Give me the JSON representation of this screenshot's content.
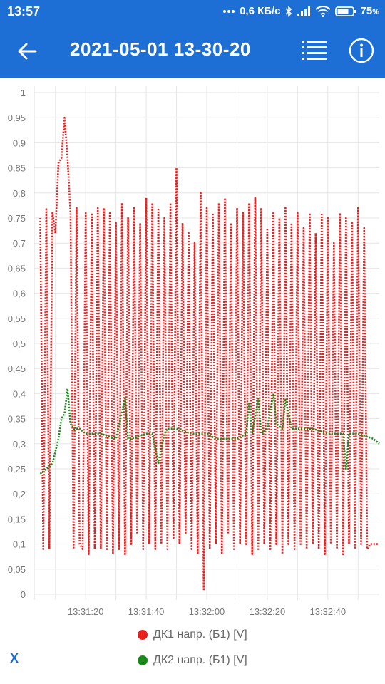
{
  "status_bar": {
    "time": "13:57",
    "network_speed": "0,6 КБ/с",
    "battery": "75",
    "battery_unit": "%",
    "icons": [
      "more-dots-icon",
      "bluetooth-icon",
      "signal-icon",
      "wifi-icon",
      "battery-icon"
    ]
  },
  "app_bar": {
    "title": "2021-05-01 13-30-20",
    "icons": [
      "back-arrow-icon",
      "list-icon",
      "info-icon"
    ]
  },
  "colors": {
    "accent": "#1d6fd6",
    "series_1": "#e82020",
    "series_2": "#1a8a1a",
    "grid": "#e6e6e6"
  },
  "chart_data": {
    "type": "line",
    "title": "",
    "xlabel": "",
    "ylabel": "",
    "ylim": [
      0,
      1
    ],
    "xlim": [
      "13:31:03",
      "13:32:57"
    ],
    "y_ticks": [
      "0",
      "0,05",
      "0,1",
      "0,15",
      "0,2",
      "0,25",
      "0,3",
      "0,35",
      "0,4",
      "0,45",
      "0,5",
      "0,55",
      "0,6",
      "0,65",
      "0,7",
      "0,75",
      "0,8",
      "0,85",
      "0,9",
      "0,95",
      "1"
    ],
    "x_ticks": [
      "13:31:20",
      "13:31:40",
      "13:32:00",
      "13:32:20",
      "13:32:40"
    ],
    "grid": true,
    "legend_position": "bottom",
    "series": [
      {
        "name": "ДК1 напр. (Б1) [V]",
        "line_style": "dotted",
        "x": [
          "13:31:05",
          "13:31:06",
          "13:31:07",
          "13:31:08",
          "13:31:09",
          "13:31:10",
          "13:31:11",
          "13:31:12",
          "13:31:13",
          "13:31:14",
          "13:31:15",
          "13:31:16",
          "13:31:17",
          "13:31:18",
          "13:31:19",
          "13:31:20",
          "13:31:21",
          "13:31:22",
          "13:31:23",
          "13:31:24",
          "13:31:25",
          "13:31:26",
          "13:31:27",
          "13:31:28",
          "13:31:29",
          "13:31:30",
          "13:31:31",
          "13:31:32",
          "13:31:33",
          "13:31:34",
          "13:31:35",
          "13:31:36",
          "13:31:37",
          "13:31:38",
          "13:31:39",
          "13:31:40",
          "13:31:41",
          "13:31:42",
          "13:31:43",
          "13:31:44",
          "13:31:45",
          "13:31:46",
          "13:31:47",
          "13:31:48",
          "13:31:49",
          "13:31:50",
          "13:31:51",
          "13:31:52",
          "13:31:53",
          "13:31:54",
          "13:31:55",
          "13:31:56",
          "13:31:57",
          "13:31:58",
          "13:31:59",
          "13:32:00",
          "13:32:01",
          "13:32:02",
          "13:32:03",
          "13:32:04",
          "13:32:05",
          "13:32:06",
          "13:32:07",
          "13:32:08",
          "13:32:09",
          "13:32:10",
          "13:32:11",
          "13:32:12",
          "13:32:13",
          "13:32:14",
          "13:32:15",
          "13:32:16",
          "13:32:17",
          "13:32:18",
          "13:32:19",
          "13:32:20",
          "13:32:21",
          "13:32:22",
          "13:32:23",
          "13:32:24",
          "13:32:25",
          "13:32:26",
          "13:32:27",
          "13:32:28",
          "13:32:29",
          "13:32:30",
          "13:32:31",
          "13:32:32",
          "13:32:33",
          "13:32:34",
          "13:32:35",
          "13:32:36",
          "13:32:37",
          "13:32:38",
          "13:32:39",
          "13:32:40",
          "13:32:41",
          "13:32:42",
          "13:32:43",
          "13:32:44",
          "13:32:45",
          "13:32:46",
          "13:32:47",
          "13:32:48",
          "13:32:49",
          "13:32:50",
          "13:32:51",
          "13:32:52",
          "13:32:53",
          "13:32:54",
          "13:32:55",
          "13:32:56",
          "13:32:57"
        ],
        "values": [
          0.75,
          0.09,
          0.77,
          0.09,
          0.76,
          0.72,
          0.86,
          0.87,
          0.95,
          0.87,
          0.76,
          0.09,
          0.77,
          0.1,
          0.09,
          0.76,
          0.08,
          0.76,
          0.09,
          0.77,
          0.09,
          0.77,
          0.09,
          0.76,
          0.08,
          0.74,
          0.09,
          0.78,
          0.08,
          0.75,
          0.1,
          0.77,
          0.12,
          0.74,
          0.09,
          0.79,
          0.1,
          0.78,
          0.09,
          0.77,
          0.1,
          0.75,
          0.09,
          0.78,
          0.11,
          0.85,
          0.1,
          0.74,
          0.12,
          0.72,
          0.09,
          0.7,
          0.08,
          0.8,
          0.01,
          0.77,
          0.09,
          0.76,
          0.1,
          0.78,
          0.08,
          0.79,
          0.12,
          0.74,
          0.09,
          0.77,
          0.1,
          0.76,
          0.1,
          0.78,
          0.08,
          0.79,
          0.09,
          0.77,
          0.1,
          0.73,
          0.09,
          0.76,
          0.1,
          0.75,
          0.08,
          0.77,
          0.1,
          0.74,
          0.09,
          0.76,
          0.1,
          0.73,
          0.09,
          0.76,
          0.1,
          0.72,
          0.09,
          0.76,
          0.08,
          0.75,
          0.1,
          0.7,
          0.09,
          0.76,
          0.08,
          0.75,
          0.1,
          0.74,
          0.09,
          0.77,
          0.1,
          0.73,
          0.09,
          0.1,
          0.1,
          0.1,
          0.1
        ]
      },
      {
        "name": "ДК2 напр. (Б1) [V]",
        "line_style": "dotted",
        "x": [
          "13:31:05",
          "13:31:07",
          "13:31:09",
          "13:31:11",
          "13:31:12",
          "13:31:13",
          "13:31:14",
          "13:31:15",
          "13:31:16",
          "13:31:18",
          "13:31:20",
          "13:31:25",
          "13:31:30",
          "13:31:33",
          "13:31:34",
          "13:31:35",
          "13:31:40",
          "13:31:42",
          "13:31:44",
          "13:31:46",
          "13:31:47",
          "13:31:48",
          "13:31:50",
          "13:31:55",
          "13:32:00",
          "13:32:03",
          "13:32:06",
          "13:32:10",
          "13:32:13",
          "13:32:14",
          "13:32:15",
          "13:32:17",
          "13:32:18",
          "13:32:20",
          "13:32:22",
          "13:32:23",
          "13:32:25",
          "13:32:26",
          "13:32:28",
          "13:32:30",
          "13:32:35",
          "13:32:40",
          "13:32:45",
          "13:32:46",
          "13:32:47",
          "13:32:50",
          "13:32:55",
          "13:32:57"
        ],
        "values": [
          0.24,
          0.25,
          0.26,
          0.31,
          0.35,
          0.36,
          0.41,
          0.34,
          0.33,
          0.33,
          0.32,
          0.32,
          0.31,
          0.39,
          0.31,
          0.31,
          0.32,
          0.32,
          0.26,
          0.32,
          0.33,
          0.33,
          0.33,
          0.32,
          0.32,
          0.31,
          0.31,
          0.31,
          0.32,
          0.38,
          0.32,
          0.39,
          0.32,
          0.33,
          0.4,
          0.34,
          0.33,
          0.39,
          0.33,
          0.33,
          0.33,
          0.32,
          0.32,
          0.25,
          0.32,
          0.32,
          0.31,
          0.3
        ]
      }
    ]
  },
  "bottom": {
    "x_button": "X"
  }
}
